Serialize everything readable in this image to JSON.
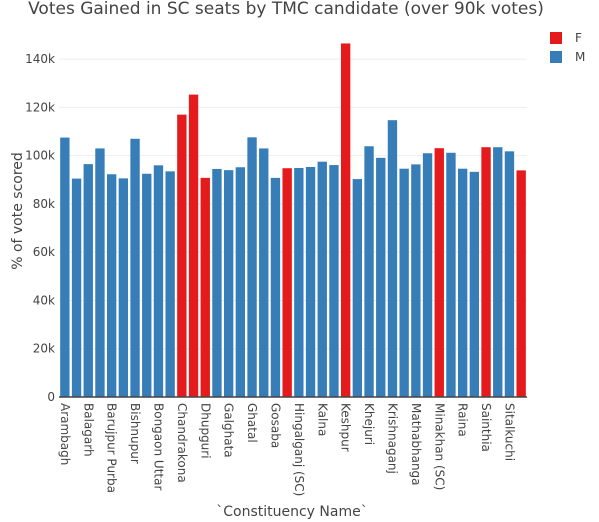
{
  "chart_data": {
    "type": "bar",
    "title": "Votes Gained in SC seats by TMC candidate (over 90k votes)",
    "xlabel": "`Constituency Name`",
    "ylabel": "% of vote scored",
    "ylim": [
      0,
      150000
    ],
    "yticks": [
      0,
      20000,
      40000,
      60000,
      80000,
      100000,
      120000,
      140000
    ],
    "ytick_labels": [
      "0",
      "20k",
      "40k",
      "60k",
      "80k",
      "100k",
      "120k",
      "140k"
    ],
    "grid": true,
    "legend_position": "top-right",
    "legend": [
      {
        "key": "F",
        "label": "F",
        "color": "#e41a1c"
      },
      {
        "key": "M",
        "label": "M",
        "color": "#377eb8"
      }
    ],
    "tick_labels": [
      "Arambagh",
      "Balagarh",
      "Barujpur Purba",
      "Bishnupur",
      "Bongaon Uttar",
      "Chandrakona",
      "Dhupguri",
      "Galghata",
      "Ghatal",
      "Gosaba",
      "Hingalganj (SC)",
      "Kalna",
      "Keshpur",
      "Khejuri",
      "Krishnaganj",
      "Mathabhanga",
      "Minakhan (SC)",
      "Raina",
      "Sainthia",
      "Sitalkuchi"
    ],
    "bars": [
      {
        "value": 107500,
        "group": "M",
        "tick": "Arambagh"
      },
      {
        "value": 90500,
        "group": "M"
      },
      {
        "value": 96500,
        "group": "M",
        "tick": "Balagarh"
      },
      {
        "value": 103000,
        "group": "M"
      },
      {
        "value": 92300,
        "group": "M",
        "tick": "Barujpur Purba"
      },
      {
        "value": 90600,
        "group": "M"
      },
      {
        "value": 107000,
        "group": "M",
        "tick": "Bishnupur"
      },
      {
        "value": 92500,
        "group": "M"
      },
      {
        "value": 96000,
        "group": "M",
        "tick": "Bongaon Uttar"
      },
      {
        "value": 93500,
        "group": "M"
      },
      {
        "value": 117000,
        "group": "F",
        "tick": "Chandrakona"
      },
      {
        "value": 125300,
        "group": "F"
      },
      {
        "value": 90800,
        "group": "F",
        "tick": "Dhupguri"
      },
      {
        "value": 94500,
        "group": "M"
      },
      {
        "value": 94000,
        "group": "M",
        "tick": "Galghata"
      },
      {
        "value": 95200,
        "group": "M"
      },
      {
        "value": 107600,
        "group": "M",
        "tick": "Ghatal"
      },
      {
        "value": 103000,
        "group": "M"
      },
      {
        "value": 90800,
        "group": "M",
        "tick": "Gosaba"
      },
      {
        "value": 94800,
        "group": "F"
      },
      {
        "value": 94900,
        "group": "M",
        "tick": "Hingalganj (SC)"
      },
      {
        "value": 95300,
        "group": "M"
      },
      {
        "value": 97500,
        "group": "M",
        "tick": "Kalna"
      },
      {
        "value": 96100,
        "group": "M"
      },
      {
        "value": 146500,
        "group": "F",
        "tick": "Keshpur"
      },
      {
        "value": 90300,
        "group": "M"
      },
      {
        "value": 103900,
        "group": "M",
        "tick": "Khejuri"
      },
      {
        "value": 99100,
        "group": "M"
      },
      {
        "value": 114700,
        "group": "M",
        "tick": "Krishnaganj"
      },
      {
        "value": 94600,
        "group": "M"
      },
      {
        "value": 96400,
        "group": "M",
        "tick": "Mathabhanga"
      },
      {
        "value": 101000,
        "group": "M"
      },
      {
        "value": 103100,
        "group": "F",
        "tick": "Minakhan (SC)"
      },
      {
        "value": 101200,
        "group": "M"
      },
      {
        "value": 94600,
        "group": "M",
        "tick": "Raina"
      },
      {
        "value": 93300,
        "group": "M"
      },
      {
        "value": 103500,
        "group": "F",
        "tick": "Sainthia"
      },
      {
        "value": 103500,
        "group": "M"
      },
      {
        "value": 101800,
        "group": "M",
        "tick": "Sitalkuchi"
      },
      {
        "value": 93900,
        "group": "F"
      }
    ]
  }
}
